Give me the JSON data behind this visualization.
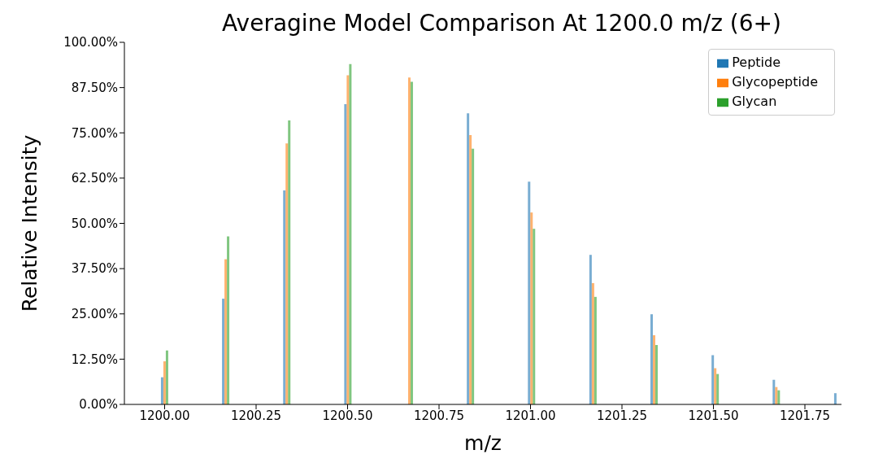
{
  "chart_data": {
    "type": "bar",
    "title": "Averagine Model Comparison At 1200.0 m/z (6+)",
    "xlabel": "m/z",
    "ylabel": "Relative Intensity",
    "x": [
      1200.0,
      1200.167,
      1200.334,
      1200.501,
      1200.669,
      1200.836,
      1201.003,
      1201.171,
      1201.338,
      1201.505,
      1201.672,
      1201.84
    ],
    "xlim": [
      1199.89,
      1201.85
    ],
    "xticks": [
      {
        "value": 1200,
        "label": "1200.00"
      },
      1200.25,
      {
        "value": 1200.5,
        "label": "1200.50"
      },
      1200.75,
      {
        "value": 1201,
        "label": "1201.00"
      },
      1201.25,
      {
        "value": 1201.5,
        "label": "1201.50"
      },
      1201.75
    ],
    "ylim": [
      0,
      100
    ],
    "yticks": [
      {
        "value": 0,
        "label": "0.00%"
      },
      {
        "value": 12.5,
        "label": "12.50%"
      },
      {
        "value": 25,
        "label": "25.00%"
      },
      {
        "value": 37.5,
        "label": "37.50%"
      },
      {
        "value": 50,
        "label": "50.00%"
      },
      {
        "value": 62.5,
        "label": "62.50%"
      },
      {
        "value": 75,
        "label": "75.00%"
      },
      {
        "value": 87.5,
        "label": "87.50%"
      },
      {
        "value": 100,
        "label": "100.00%"
      }
    ],
    "legend": "top right",
    "series": [
      {
        "name": "Peptide",
        "color": "#1f77b4",
        "values": [
          7.5,
          29.2,
          59.1,
          82.9,
          null,
          80.4,
          61.5,
          41.3,
          24.9,
          13.6,
          6.8,
          3.1
        ]
      },
      {
        "name": "Glycopeptide",
        "color": "#ff7f0e",
        "values": [
          11.9,
          40.1,
          72.1,
          90.9,
          90.3,
          74.4,
          53.0,
          33.5,
          19.1,
          10.0,
          4.8,
          null
        ]
      },
      {
        "name": "Glycan",
        "color": "#2ca02c",
        "values": [
          14.9,
          46.4,
          78.4,
          94.0,
          89.1,
          70.6,
          48.5,
          29.7,
          16.4,
          8.4,
          3.9,
          null
        ]
      }
    ]
  }
}
